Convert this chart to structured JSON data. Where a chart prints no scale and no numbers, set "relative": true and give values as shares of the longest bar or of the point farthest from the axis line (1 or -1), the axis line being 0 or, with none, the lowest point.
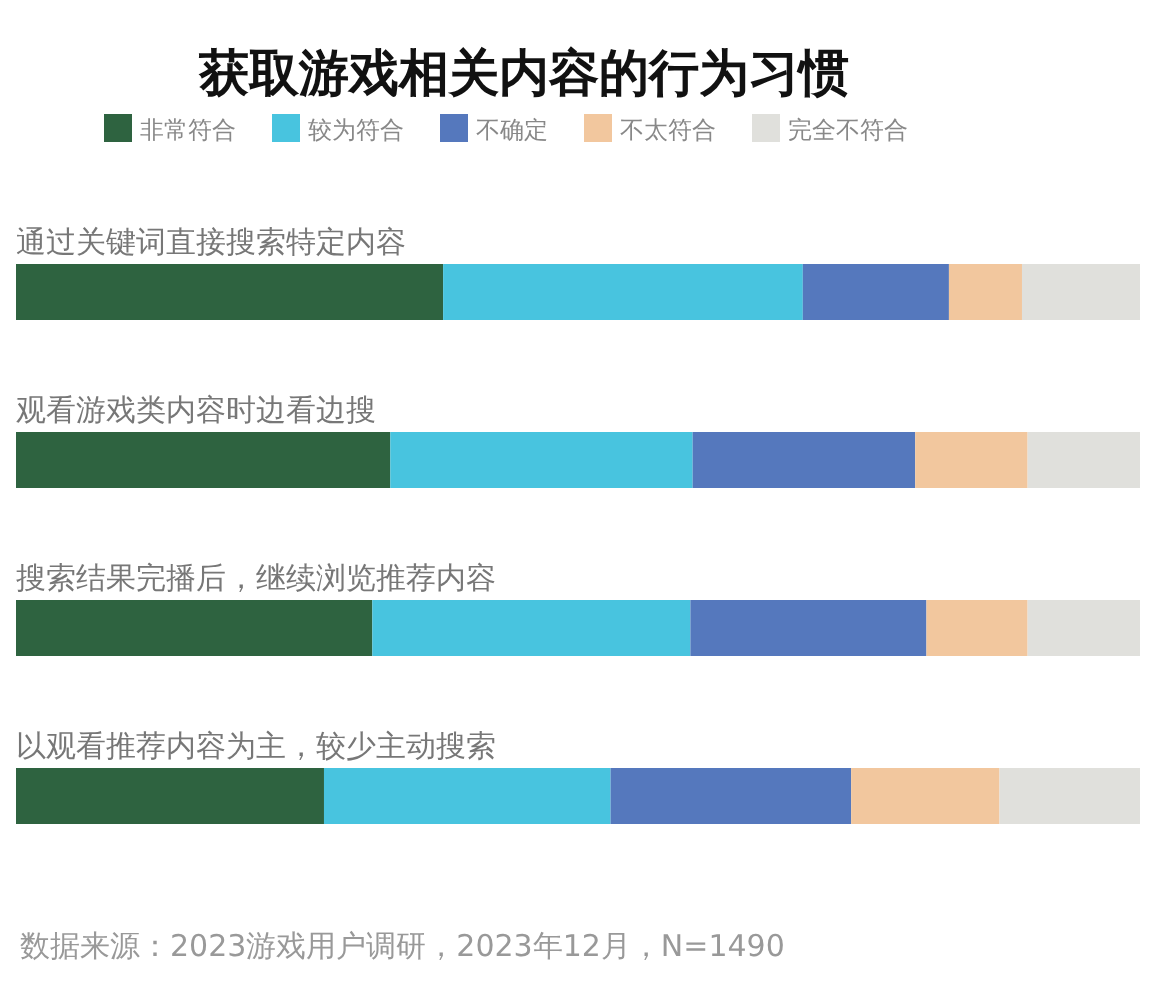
{
  "chart_data": {
    "type": "bar",
    "title": "获取游戏相关内容的行为习惯",
    "orientation": "horizontal",
    "stacked": true,
    "relative": true,
    "legend": "top",
    "categories": [
      "通过关键词直接搜索特定内容",
      "观看游戏类内容时边看边搜",
      "搜索结果完播后，继续浏览推荐内容",
      "以观看推荐内容为主，较少主动搜索"
    ],
    "series": [
      {
        "name": "非常符合",
        "color": "#2e6340",
        "values": [
          0.38,
          0.333,
          0.317,
          0.274
        ]
      },
      {
        "name": "较为符合",
        "color": "#48c4df",
        "values": [
          0.32,
          0.269,
          0.283,
          0.255
        ]
      },
      {
        "name": "不确定",
        "color": "#5578bd",
        "values": [
          0.13,
          0.198,
          0.21,
          0.214
        ]
      },
      {
        "name": "不太符合",
        "color": "#f2c79e",
        "values": [
          0.065,
          0.1,
          0.09,
          0.132
        ]
      },
      {
        "name": "完全不符合",
        "color": "#e0e0dc",
        "values": [
          0.105,
          0.1,
          0.1,
          0.125
        ]
      }
    ],
    "annotations": [
      "数据来源：2023游戏用户调研，2023年12月，N=1490"
    ]
  }
}
